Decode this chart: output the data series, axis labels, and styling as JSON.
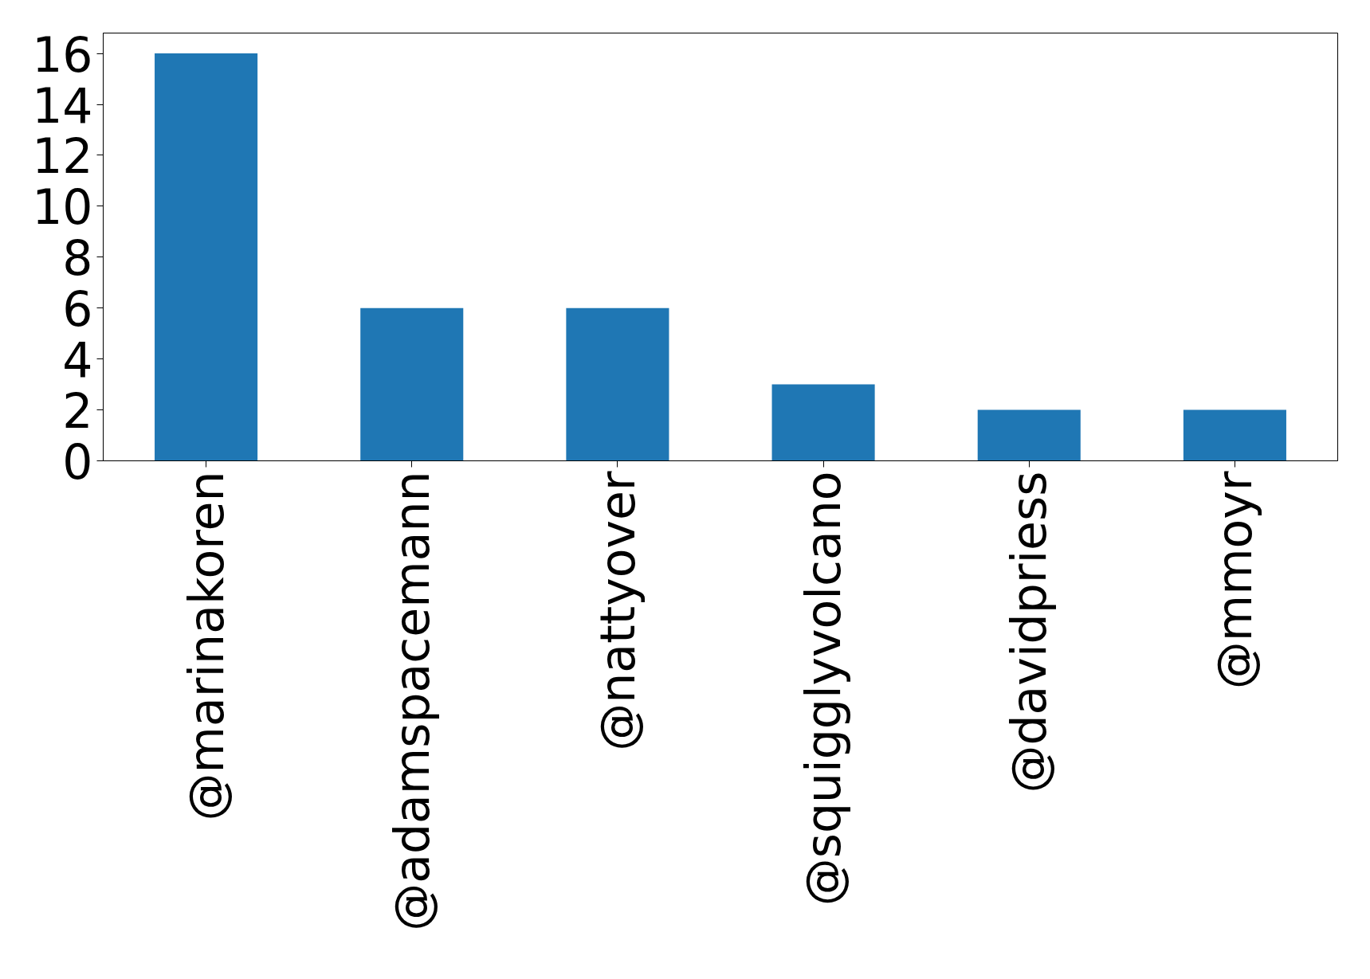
{
  "chart_data": {
    "type": "bar",
    "categories": [
      "@marinakoren",
      "@adamspacemann",
      "@nattyover",
      "@squigglyvolcano",
      "@davidpriess",
      "@mmoyr"
    ],
    "values": [
      16,
      6,
      6,
      3,
      2,
      2
    ],
    "color": "#1f77b4",
    "ylim": [
      0,
      16.8
    ],
    "yticks": [
      0,
      2,
      4,
      6,
      8,
      10,
      12,
      14,
      16
    ],
    "grid": false
  }
}
